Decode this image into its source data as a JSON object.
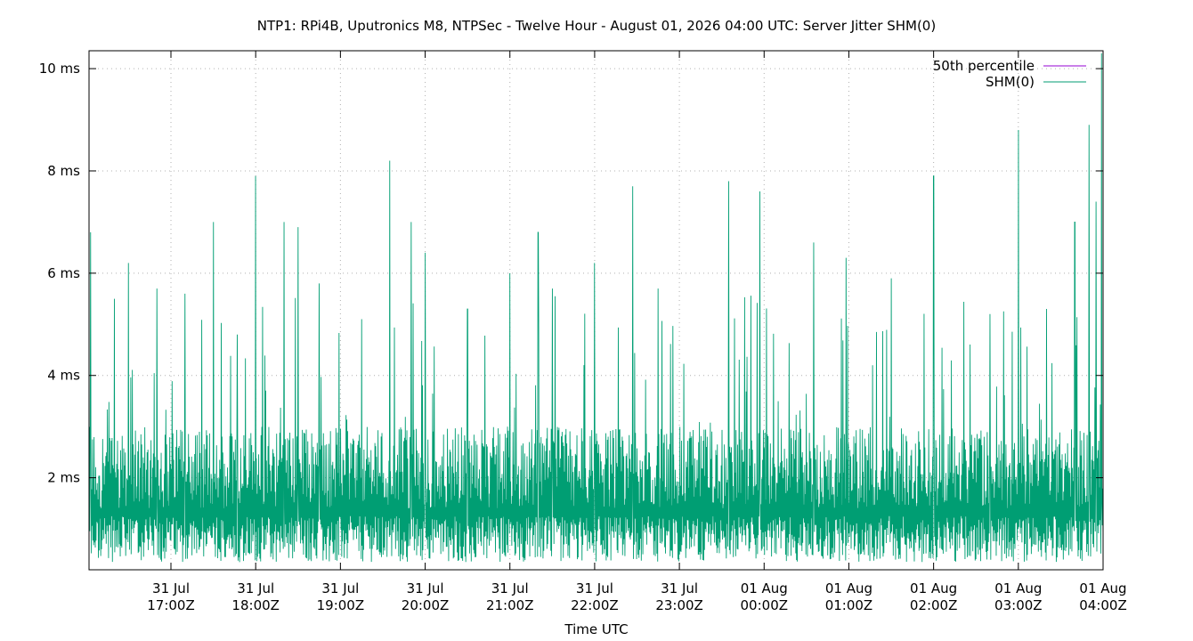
{
  "chart_data": {
    "type": "line",
    "title": "NTP1: RPi4B, Uputronics M8, NTPSec - Twelve Hour - August 01, 2026 04:00 UTC: Server Jitter SHM(0)",
    "xlabel": "Time UTC",
    "ylabel": "",
    "x_range": [
      "2026-07-31T16:02Z",
      "2026-08-01T04:00Z"
    ],
    "ylim": [
      0.2,
      10.35
    ],
    "y_unit": "ms",
    "y_ticks": [
      {
        "value": 2,
        "label": "2 ms"
      },
      {
        "value": 4,
        "label": "4 ms"
      },
      {
        "value": 6,
        "label": "6 ms"
      },
      {
        "value": 8,
        "label": "8 ms"
      },
      {
        "value": 10,
        "label": "10 ms"
      }
    ],
    "x_ticks": [
      {
        "value": "2026-07-31T17:00Z",
        "line1": "31 Jul",
        "line2": "17:00Z"
      },
      {
        "value": "2026-07-31T18:00Z",
        "line1": "31 Jul",
        "line2": "18:00Z"
      },
      {
        "value": "2026-07-31T19:00Z",
        "line1": "31 Jul",
        "line2": "19:00Z"
      },
      {
        "value": "2026-07-31T20:00Z",
        "line1": "31 Jul",
        "line2": "20:00Z"
      },
      {
        "value": "2026-07-31T21:00Z",
        "line1": "31 Jul",
        "line2": "21:00Z"
      },
      {
        "value": "2026-07-31T22:00Z",
        "line1": "31 Jul",
        "line2": "22:00Z"
      },
      {
        "value": "2026-07-31T23:00Z",
        "line1": "31 Jul",
        "line2": "23:00Z"
      },
      {
        "value": "2026-08-01T00:00Z",
        "line1": "01 Aug",
        "line2": "00:00Z"
      },
      {
        "value": "2026-08-01T01:00Z",
        "line1": "01 Aug",
        "line2": "01:00Z"
      },
      {
        "value": "2026-08-01T02:00Z",
        "line1": "01 Aug",
        "line2": "02:00Z"
      },
      {
        "value": "2026-08-01T03:00Z",
        "line1": "01 Aug",
        "line2": "03:00Z"
      },
      {
        "value": "2026-08-01T04:00Z",
        "line1": "01 Aug",
        "line2": "04:00Z"
      }
    ],
    "grid": true,
    "legend_position": "top-right",
    "series": [
      {
        "name": "50th percentile",
        "color": "#9400d3",
        "values": []
      },
      {
        "name": "SHM(0)",
        "color": "#009e73",
        "note_points": "dense jitter trace, baseline ~0.5-3 ms, spikes listed as [time, ms]",
        "spikes": [
          [
            "2026-07-31T16:03Z",
            6.8
          ],
          [
            "2026-07-31T16:20Z",
            5.5
          ],
          [
            "2026-07-31T16:30Z",
            6.2
          ],
          [
            "2026-07-31T16:50Z",
            5.7
          ],
          [
            "2026-07-31T17:10Z",
            5.6
          ],
          [
            "2026-07-31T17:30Z",
            7.0
          ],
          [
            "2026-07-31T17:47Z",
            4.8
          ],
          [
            "2026-07-31T18:00Z",
            7.9
          ],
          [
            "2026-07-31T18:20Z",
            7.0
          ],
          [
            "2026-07-31T18:30Z",
            6.9
          ],
          [
            "2026-07-31T18:45Z",
            5.8
          ],
          [
            "2026-07-31T19:15Z",
            5.1
          ],
          [
            "2026-07-31T19:35Z",
            8.2
          ],
          [
            "2026-07-31T19:50Z",
            7.0
          ],
          [
            "2026-07-31T20:00Z",
            6.4
          ],
          [
            "2026-07-31T20:30Z",
            5.3
          ],
          [
            "2026-07-31T21:00Z",
            6.0
          ],
          [
            "2026-07-31T21:20Z",
            6.8
          ],
          [
            "2026-07-31T21:30Z",
            5.7
          ],
          [
            "2026-07-31T22:00Z",
            6.2
          ],
          [
            "2026-07-31T22:27Z",
            7.7
          ],
          [
            "2026-07-31T22:45Z",
            5.7
          ],
          [
            "2026-07-31T23:35Z",
            7.8
          ],
          [
            "2026-07-31T23:57Z",
            7.6
          ],
          [
            "2026-08-01T00:35Z",
            6.6
          ],
          [
            "2026-08-01T00:58Z",
            6.3
          ],
          [
            "2026-08-01T01:30Z",
            5.9
          ],
          [
            "2026-08-01T02:00Z",
            7.9
          ],
          [
            "2026-08-01T02:40Z",
            5.2
          ],
          [
            "2026-08-01T03:00Z",
            8.8
          ],
          [
            "2026-08-01T03:20Z",
            5.3
          ],
          [
            "2026-08-01T03:40Z",
            7.0
          ],
          [
            "2026-08-01T03:50Z",
            8.9
          ],
          [
            "2026-08-01T03:55Z",
            7.4
          ],
          [
            "2026-08-01T03:59Z",
            10.3
          ]
        ]
      }
    ]
  }
}
